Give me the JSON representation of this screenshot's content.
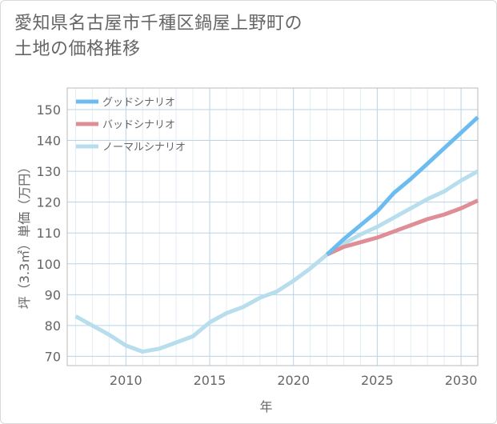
{
  "chart_data": {
    "type": "line",
    "title_lines": [
      "愛知県名古屋市千種区鍋屋上野町の",
      "土地の価格推移"
    ],
    "xlabel": "年",
    "ylabel": "坪（3.3㎡）単価（万円）",
    "xlim": [
      2006.5,
      2031
    ],
    "ylim": [
      67,
      157
    ],
    "x_ticks": [
      2010,
      2015,
      2020,
      2025,
      2030
    ],
    "y_ticks": [
      70,
      80,
      90,
      100,
      110,
      120,
      130,
      140,
      150
    ],
    "grid": true,
    "legend_position": "top-left",
    "series": [
      {
        "name": "グッドシナリオ",
        "color": "#6cbcf0",
        "x": [
          2022,
          2023,
          2024,
          2025,
          2026,
          2027,
          2028,
          2029,
          2030,
          2031
        ],
        "y": [
          103,
          108,
          112.5,
          117,
          123,
          127.5,
          132.5,
          137.5,
          142.5,
          147.5
        ]
      },
      {
        "name": "バッドシナリオ",
        "color": "#e08e96",
        "x": [
          2022,
          2023,
          2024,
          2025,
          2026,
          2027,
          2028,
          2029,
          2030,
          2031
        ],
        "y": [
          103,
          105.5,
          107,
          108.5,
          110.5,
          112.5,
          114.5,
          116,
          118,
          120.5
        ]
      },
      {
        "name": "ノーマルシナリオ",
        "color": "#b8dded",
        "x": [
          2007,
          2008,
          2009,
          2010,
          2011,
          2012,
          2013,
          2014,
          2015,
          2016,
          2017,
          2018,
          2019,
          2020,
          2021,
          2022,
          2023,
          2024,
          2025,
          2026,
          2027,
          2028,
          2029,
          2030,
          2031
        ],
        "y": [
          83,
          80,
          77,
          73.5,
          71.5,
          72.5,
          74.5,
          76.5,
          81,
          84,
          86,
          89,
          91,
          94.5,
          98.5,
          103,
          106.5,
          109.5,
          112,
          115,
          118,
          121,
          123.5,
          127,
          130
        ]
      }
    ]
  }
}
